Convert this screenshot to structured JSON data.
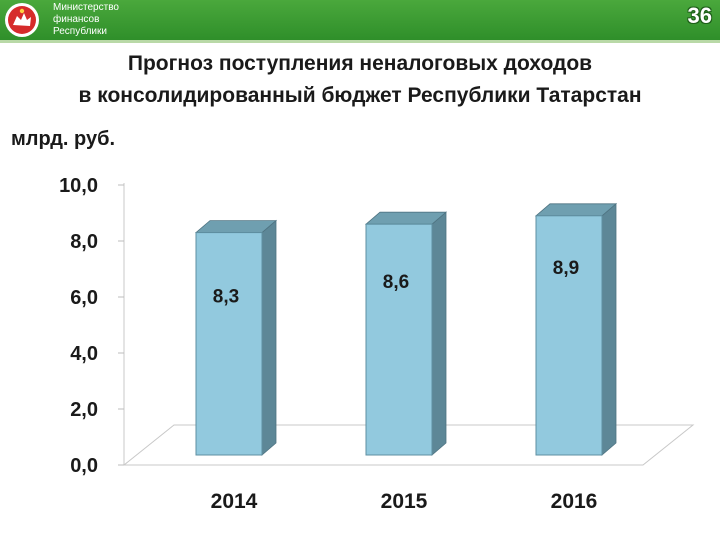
{
  "header": {
    "ministry_lines": [
      "Министерство",
      "финансов",
      "Республики"
    ],
    "page_number": "36",
    "emblem": "tatarstan-emblem-icon"
  },
  "title_lines": [
    "Прогноз поступления неналоговых доходов",
    "в консолидированный бюджет Республики Татарстан"
  ],
  "unit": "млрд. руб.",
  "colors": {
    "header_green": "#3c9e33",
    "bar_front": "#92c9de",
    "bar_top": "#6f9fb0",
    "bar_side": "#5d8797"
  },
  "chart_data": {
    "type": "bar",
    "categories": [
      "2014",
      "2015",
      "2016"
    ],
    "values": [
      8.3,
      8.6,
      8.9
    ],
    "value_labels": [
      "8,3",
      "8,6",
      "8,9"
    ],
    "yticks": [
      0,
      2,
      4,
      6,
      8,
      10
    ],
    "ytick_labels": [
      "0,0",
      "2,0",
      "4,0",
      "6,0",
      "8,0",
      "10,0"
    ],
    "ylim": [
      0,
      10
    ],
    "title": "Прогноз поступления неналоговых доходов в консолидированный бюджет Республики Татарстан",
    "ylabel": "млрд. руб.",
    "xlabel": "",
    "style": "3d-column",
    "grid": false,
    "legend": "none"
  }
}
